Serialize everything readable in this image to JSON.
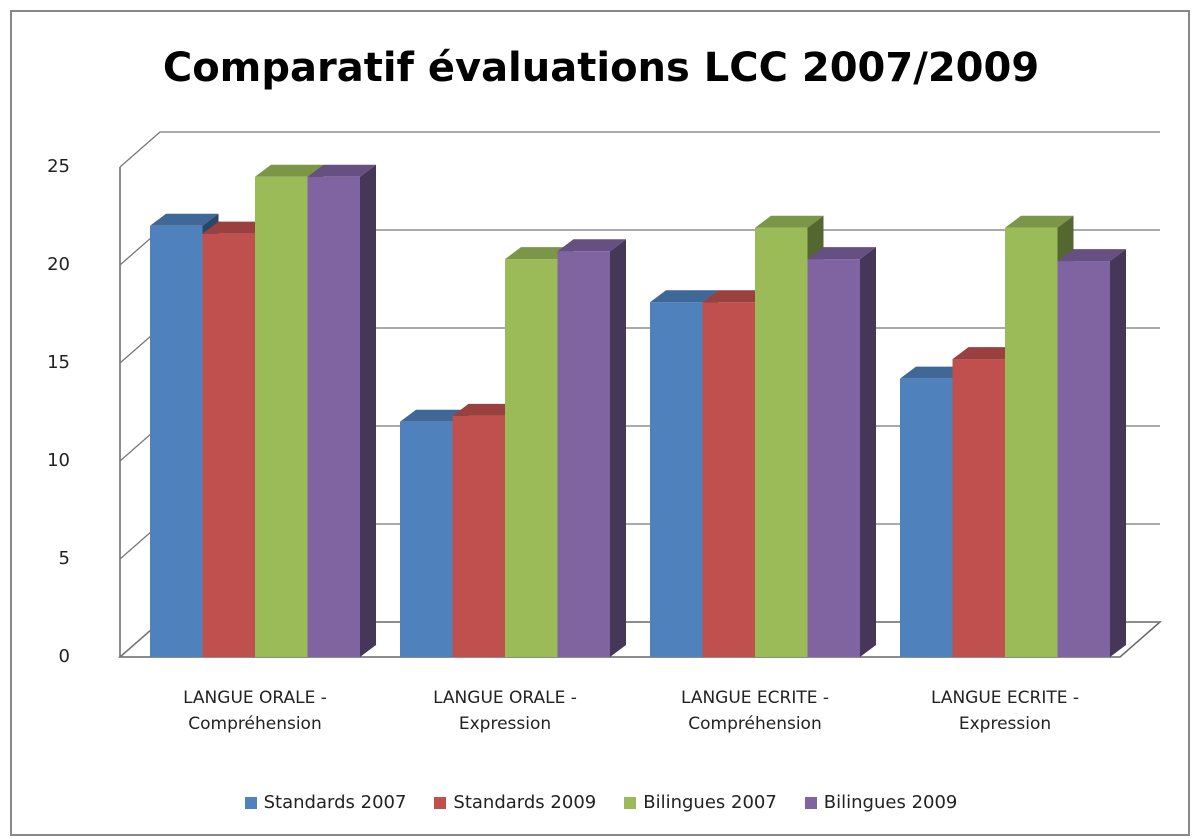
{
  "chart_data": {
    "type": "bar3d",
    "title": "Comparatif évaluations LCC 2007/2009",
    "categories": [
      "LANGUE ORALE - Compréhension",
      "LANGUE ORALE - Expression",
      "LANGUE ECRITE - Compréhension",
      "LANGUE ECRITE - Expression"
    ],
    "series": [
      {
        "name": "Standards 2007",
        "color": "#4f81bd",
        "values": [
          22,
          12,
          18.1,
          14.2
        ]
      },
      {
        "name": "Standards 2009",
        "color": "#c0504d",
        "values": [
          21.6,
          12.3,
          18.1,
          15.2
        ]
      },
      {
        "name": "Bilingues 2007",
        "color": "#9bbb59",
        "values": [
          24.5,
          20.3,
          21.9,
          21.9
        ]
      },
      {
        "name": "Bilingues 2009",
        "color": "#8064a2",
        "values": [
          24.5,
          20.7,
          20.3,
          20.2
        ]
      }
    ],
    "ylim": [
      0,
      25
    ],
    "yticks": [
      0,
      5,
      10,
      15,
      20,
      25
    ],
    "grid": true,
    "legend": "bottom"
  }
}
